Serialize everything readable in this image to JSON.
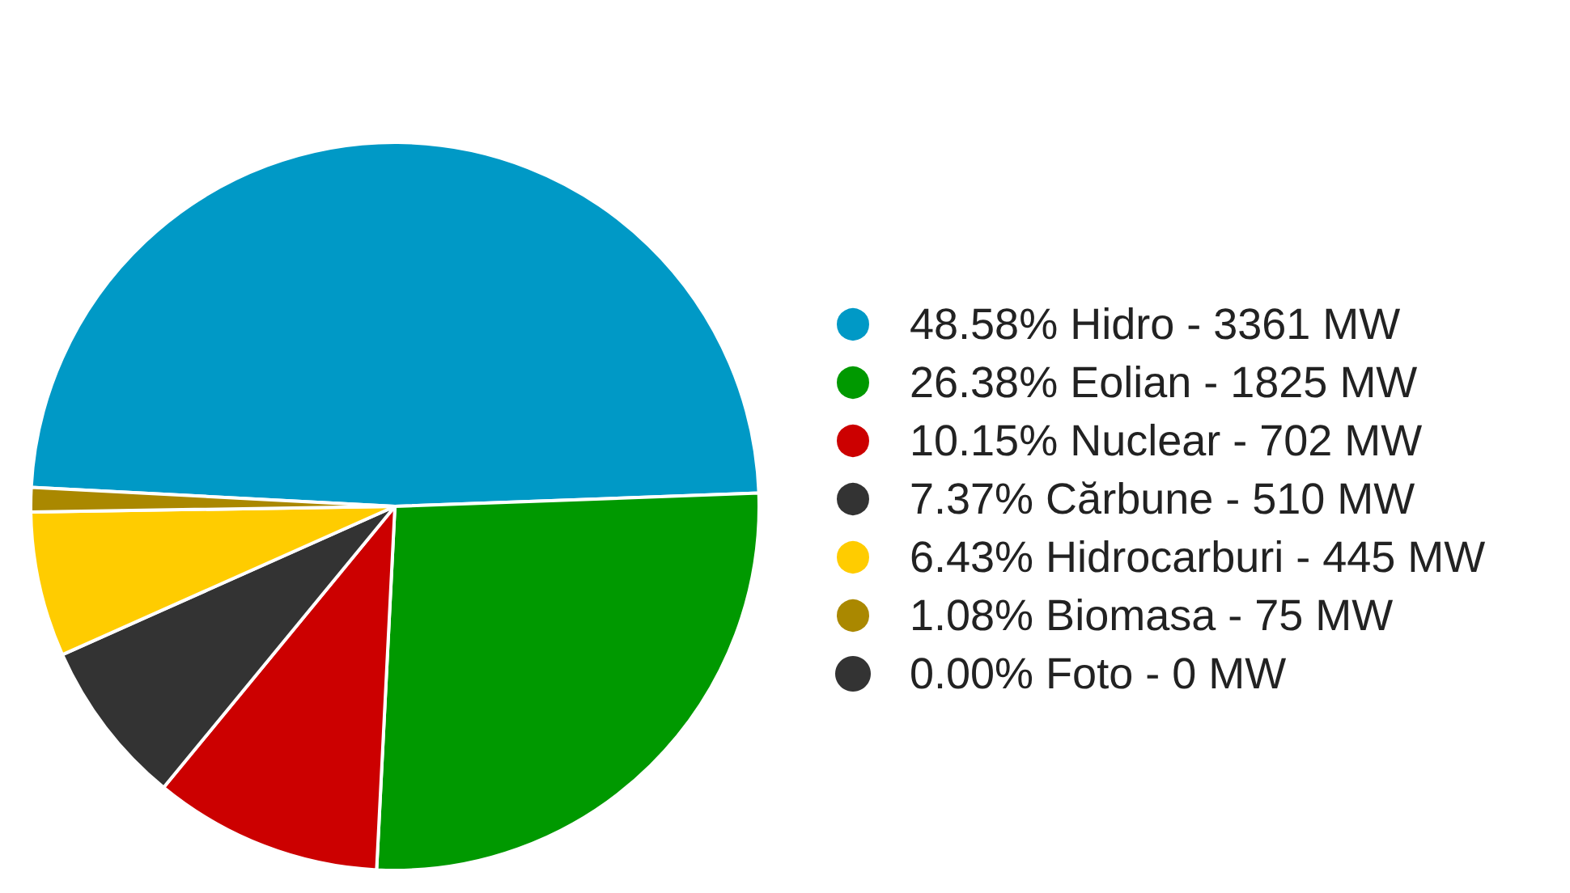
{
  "chart_data": {
    "type": "pie",
    "categories": [
      "48.58% Hidro - 3361 MW",
      "26.38% Eolian - 1825 MW",
      "10.15% Nuclear - 702 MW",
      "7.37% Cărbune - 510 MW",
      "6.43% Hidrocarburi - 445 MW",
      "1.08% Biomasa - 75 MW",
      "0.00% Foto - 0 MW"
    ],
    "values": [
      48.58,
      26.38,
      10.15,
      7.37,
      6.43,
      1.08,
      0
    ],
    "colors": [
      "#0099c6",
      "#009900",
      "#cc0000",
      "#333333",
      "#ffcc00",
      "#aa8800",
      "#333333"
    ],
    "legend": "right"
  }
}
